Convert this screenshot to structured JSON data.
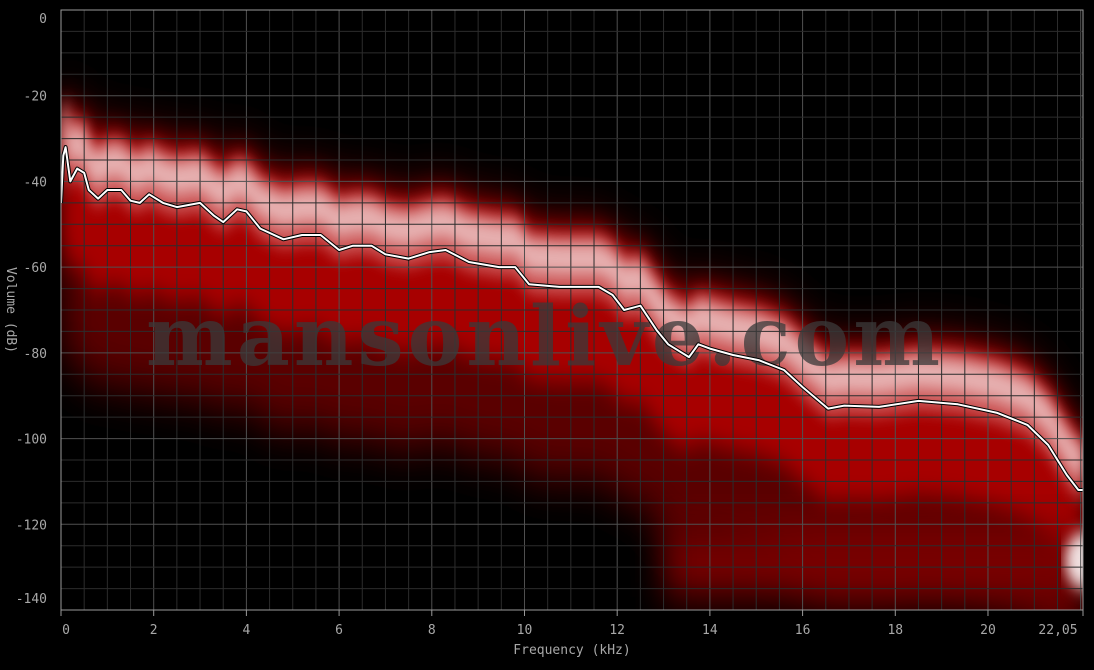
{
  "chart_data": {
    "type": "area",
    "title": "",
    "xlabel": "Frequency (kHz)",
    "ylabel": "Volume (dB)",
    "xlim": [
      0,
      22.05
    ],
    "ylim": [
      -140,
      0
    ],
    "x_ticks": [
      "0",
      "2",
      "4",
      "6",
      "8",
      "10",
      "12",
      "14",
      "16",
      "18",
      "20",
      "22,05"
    ],
    "x_tick_values": [
      0,
      2,
      4,
      6,
      8,
      10,
      12,
      14,
      16,
      18,
      20,
      22.05
    ],
    "y_ticks": [
      "0",
      "-20",
      "-40",
      "-60",
      "-80",
      "-100",
      "-120",
      "-140"
    ],
    "y_tick_values": [
      0,
      -20,
      -40,
      -60,
      -80,
      -100,
      -120,
      -140
    ],
    "grid": true,
    "background": "#000000",
    "density_color": "#b00000",
    "density_peak_color": "#f0d0d0",
    "line_color": "#ffffff",
    "watermark": "mansonlive.com",
    "series": [
      {
        "type": "line",
        "x": [
          0,
          0.05,
          0.1,
          0.2,
          0.35,
          0.5,
          0.6,
          0.8,
          1.0,
          1.3,
          1.5,
          1.7,
          1.9,
          2.2,
          2.5,
          3.0,
          3.3,
          3.5,
          3.8,
          4.0,
          4.3,
          4.8,
          5.2,
          5.6,
          6.0,
          6.3,
          6.7,
          7.0,
          7.5,
          7.95,
          8.3,
          8.8,
          9.45,
          9.8,
          10.1,
          10.75,
          11.6,
          11.9,
          12.15,
          12.5,
          12.85,
          13.1,
          13.55,
          13.75,
          14.0,
          14.5,
          15.05,
          15.6,
          16.0,
          16.55,
          16.9,
          17.65,
          18.5,
          19.35,
          20.2,
          20.85,
          21.3,
          21.7,
          21.95,
          22.05
        ],
        "y": [
          -45,
          -34,
          -32,
          -40,
          -37,
          -38,
          -42,
          -44,
          -42,
          -42,
          -44.5,
          -45,
          -43,
          -45,
          -46,
          -45,
          -48,
          -49.5,
          -46.5,
          -47,
          -51,
          -53.5,
          -52.5,
          -52.5,
          -56,
          -55,
          -55,
          -57,
          -58,
          -56.5,
          -56,
          -58.8,
          -60,
          -60,
          -64,
          -64.6,
          -64.6,
          -66.5,
          -70,
          -69,
          -74.7,
          -78,
          -81,
          -78,
          -79,
          -80.5,
          -81.7,
          -84,
          -88,
          -93,
          -92.3,
          -92.6,
          -91.2,
          -92,
          -94,
          -96.8,
          -101.5,
          -108.5,
          -112,
          -112
        ]
      }
    ]
  }
}
